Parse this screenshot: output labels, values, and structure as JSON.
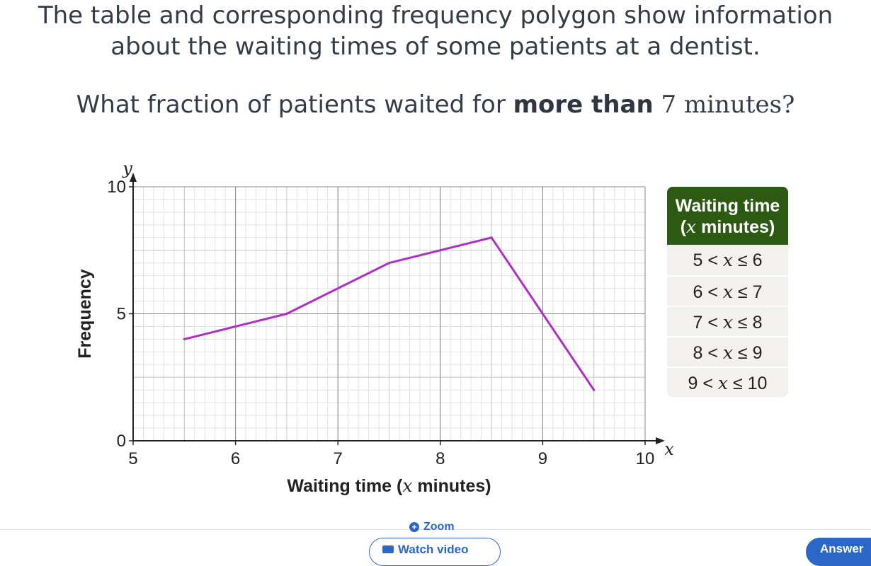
{
  "question": {
    "line1": "The table and corresponding frequency polygon show information",
    "line2": "about the waiting times of some patients at a dentist.",
    "line3_prefix": "What fraction of patients waited for ",
    "line3_bold": "more than",
    "line3_number": "7",
    "line3_unit": "minutes?"
  },
  "chart_data": {
    "type": "line",
    "title": "",
    "xlabel": "Waiting time (x minutes)",
    "xlabel_parts": {
      "before": "Waiting time (",
      "var": "x",
      "after": " minutes)"
    },
    "ylabel": "Frequency",
    "x_axis_var": "x",
    "y_axis_var": "y",
    "xlim": [
      5,
      10
    ],
    "ylim": [
      0,
      10
    ],
    "x_ticks": [
      5,
      6,
      7,
      8,
      9,
      10
    ],
    "y_ticks": [
      0,
      5,
      10
    ],
    "grid": true,
    "minor_grid_step_x": 0.1,
    "minor_grid_step_y": 0.5,
    "series": [
      {
        "color": "#b02ec8",
        "x": [
          5.5,
          6.5,
          7.5,
          8.5,
          9.5
        ],
        "y": [
          4,
          5,
          7,
          8,
          2
        ]
      }
    ]
  },
  "table": {
    "header_line1": "Waiting time",
    "header_line2_var": "x",
    "header_line2_rest": "minutes",
    "rows": [
      {
        "low": "5",
        "high": "6"
      },
      {
        "low": "6",
        "high": "7"
      },
      {
        "low": "7",
        "high": "8"
      },
      {
        "low": "8",
        "high": "9"
      },
      {
        "low": "9",
        "high": "10"
      }
    ],
    "header_color": "#2c5a12"
  },
  "footer": {
    "zoom_label": "Zoom",
    "watch_label": "Watch video",
    "answer_label": "Answer"
  }
}
